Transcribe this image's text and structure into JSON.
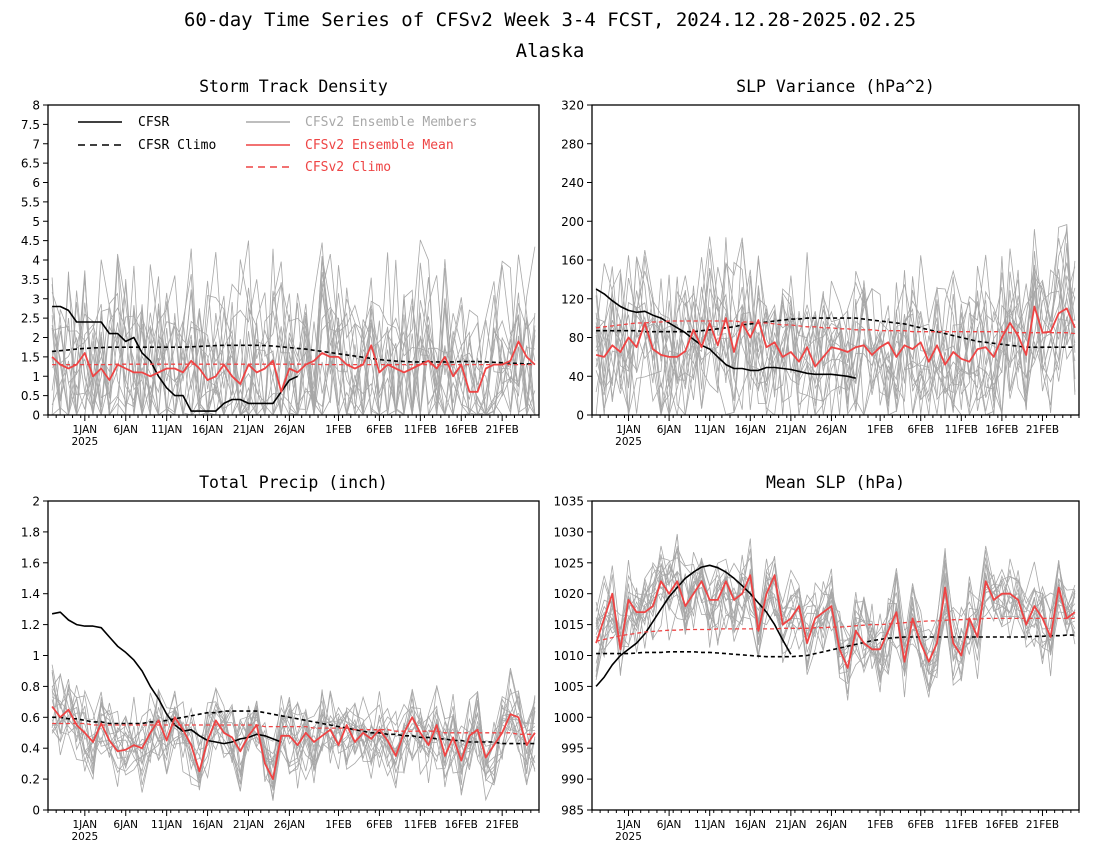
{
  "figure": {
    "title": "60-day Time Series of CFSv2 Week 3-4 FCST, 2024.12.28-2025.02.25",
    "subtitle": "Alaska"
  },
  "colors": {
    "cfsr": "#000000",
    "members": "#a8a8a8",
    "ensemble_mean": "#ee4444",
    "cfsv2_climo": "#ee4444",
    "legend_members_text": "#a8a8a8",
    "legend_red_text": "#ee4444"
  },
  "legend": {
    "cfsr": "CFSR",
    "cfsr_climo": "CFSR Climo",
    "members": "CFSv2 Ensemble Members",
    "ensemble_mean": "CFSv2 Ensemble Mean",
    "cfsv2_climo": "CFSv2 Climo"
  },
  "x_axis": {
    "days": 60,
    "ticks": [
      {
        "day": 4,
        "label": "1JAN",
        "sub": "2025"
      },
      {
        "day": 9,
        "label": "6JAN"
      },
      {
        "day": 14,
        "label": "11JAN"
      },
      {
        "day": 19,
        "label": "16JAN"
      },
      {
        "day": 24,
        "label": "21JAN"
      },
      {
        "day": 29,
        "label": "26JAN"
      },
      {
        "day": 35,
        "label": "1FEB"
      },
      {
        "day": 40,
        "label": "6FEB"
      },
      {
        "day": 45,
        "label": "11FEB"
      },
      {
        "day": 50,
        "label": "16FEB"
      },
      {
        "day": 55,
        "label": "21FEB"
      }
    ]
  },
  "chart_data": [
    {
      "type": "line",
      "title": "Storm Track Density",
      "ylim": [
        0,
        8
      ],
      "yticks": [
        "0",
        "0.5",
        "1",
        "1.5",
        "2",
        "2.5",
        "3",
        "3.5",
        "4",
        "4.5",
        "5",
        "5.5",
        "6",
        "6.5",
        "7",
        "7.5",
        "8"
      ],
      "legend_shown": true,
      "ensemble_members": 16,
      "series": [
        {
          "name": "CFSR",
          "style": "solid-black",
          "values": [
            2.8,
            2.8,
            2.7,
            2.4,
            2.4,
            2.4,
            2.4,
            2.1,
            2.1,
            1.9,
            2.0,
            1.6,
            1.4,
            1.0,
            0.7,
            0.5,
            0.5,
            0.1,
            0.1,
            0.1,
            0.1,
            0.3,
            0.4,
            0.4,
            0.3,
            0.3,
            0.3,
            0.3,
            0.6,
            0.9,
            1.0
          ]
        },
        {
          "name": "CFSR Climo",
          "style": "dashed-black",
          "values": [
            1.64,
            1.66,
            1.68,
            1.7,
            1.72,
            1.73,
            1.74,
            1.75,
            1.75,
            1.75,
            1.75,
            1.75,
            1.75,
            1.75,
            1.75,
            1.75,
            1.75,
            1.76,
            1.77,
            1.78,
            1.79,
            1.8,
            1.8,
            1.8,
            1.8,
            1.8,
            1.79,
            1.78,
            1.76,
            1.74,
            1.72,
            1.7,
            1.67,
            1.64,
            1.61,
            1.58,
            1.55,
            1.52,
            1.49,
            1.46,
            1.43,
            1.41,
            1.39,
            1.38,
            1.37,
            1.37,
            1.37,
            1.37,
            1.37,
            1.37,
            1.38,
            1.38,
            1.38,
            1.37,
            1.36,
            1.35,
            1.34,
            1.33,
            1.32,
            1.31
          ]
        },
        {
          "name": "CFSv2 Ensemble Mean",
          "style": "solid-red",
          "values": [
            1.5,
            1.3,
            1.2,
            1.3,
            1.6,
            1.0,
            1.2,
            0.9,
            1.3,
            1.2,
            1.1,
            1.1,
            1.0,
            1.1,
            1.2,
            1.2,
            1.1,
            1.4,
            1.2,
            0.9,
            1.0,
            1.3,
            1.0,
            0.8,
            1.3,
            1.1,
            1.2,
            1.4,
            0.6,
            1.2,
            1.1,
            1.3,
            1.4,
            1.6,
            1.5,
            1.5,
            1.3,
            1.2,
            1.3,
            1.8,
            1.1,
            1.3,
            1.2,
            1.1,
            1.2,
            1.3,
            1.4,
            1.2,
            1.5,
            1.0,
            1.3,
            0.6,
            0.6,
            1.2,
            1.3,
            1.3,
            1.4,
            1.9,
            1.5,
            1.3
          ]
        },
        {
          "name": "CFSv2 Climo",
          "style": "dashed-red",
          "values": [
            1.3,
            1.3,
            1.3,
            1.3,
            1.3,
            1.3,
            1.3,
            1.3,
            1.31,
            1.31,
            1.31,
            1.31,
            1.31,
            1.31,
            1.31,
            1.31,
            1.31,
            1.31,
            1.31,
            1.31,
            1.31,
            1.31,
            1.31,
            1.31,
            1.31,
            1.31,
            1.31,
            1.31,
            1.31,
            1.31,
            1.31,
            1.31,
            1.31,
            1.3,
            1.3,
            1.3,
            1.3,
            1.3,
            1.3,
            1.3,
            1.3,
            1.3,
            1.3,
            1.3,
            1.3,
            1.3,
            1.3,
            1.3,
            1.3,
            1.3,
            1.3,
            1.3,
            1.3,
            1.3,
            1.3,
            1.3,
            1.3,
            1.3,
            1.3,
            1.3
          ]
        }
      ]
    },
    {
      "type": "line",
      "title": "SLP Variance (hPa^2)",
      "ylim": [
        0,
        320
      ],
      "yticks": [
        "0",
        "40",
        "80",
        "120",
        "160",
        "200",
        "240",
        "280",
        "320"
      ],
      "legend_shown": false,
      "ensemble_members": 16,
      "series": [
        {
          "name": "CFSR",
          "style": "solid-black",
          "values": [
            130,
            125,
            118,
            112,
            108,
            106,
            107,
            103,
            100,
            95,
            90,
            85,
            78,
            72,
            68,
            60,
            52,
            48,
            48,
            46,
            46,
            49,
            49,
            48,
            47,
            45,
            43,
            42,
            42,
            42,
            41,
            40,
            38
          ]
        },
        {
          "name": "CFSR Climo",
          "style": "dashed-black",
          "values": [
            87,
            87,
            87,
            87,
            87,
            87,
            86,
            86,
            86,
            86,
            86,
            86,
            86,
            87,
            88,
            89,
            90,
            91,
            93,
            94,
            95,
            96,
            97,
            98,
            99,
            99,
            100,
            100,
            100,
            100,
            100,
            100,
            100,
            99,
            98,
            97,
            96,
            95,
            94,
            92,
            90,
            88,
            86,
            84,
            82,
            80,
            78,
            76,
            75,
            74,
            73,
            72,
            71,
            70,
            70,
            70,
            70,
            70,
            70,
            70
          ]
        },
        {
          "name": "CFSv2 Ensemble Mean",
          "style": "solid-red",
          "values": [
            62,
            60,
            72,
            65,
            80,
            70,
            95,
            68,
            62,
            60,
            60,
            66,
            88,
            70,
            95,
            72,
            100,
            65,
            95,
            80,
            98,
            70,
            75,
            60,
            65,
            55,
            70,
            50,
            60,
            70,
            68,
            65,
            70,
            72,
            62,
            70,
            75,
            60,
            72,
            68,
            75,
            55,
            72,
            52,
            65,
            58,
            55,
            68,
            70,
            60,
            80,
            95,
            82,
            62,
            112,
            85,
            86,
            105,
            110,
            90
          ]
        },
        {
          "name": "CFSv2 Climo",
          "style": "dashed-red",
          "values": [
            90,
            91,
            92,
            93,
            94,
            95,
            95,
            96,
            96,
            97,
            97,
            97,
            97,
            97,
            97,
            97,
            97,
            97,
            96,
            96,
            95,
            95,
            94,
            93,
            93,
            92,
            91,
            91,
            90,
            90,
            89,
            89,
            88,
            88,
            88,
            87,
            87,
            87,
            87,
            86,
            86,
            86,
            86,
            86,
            86,
            86,
            86,
            86,
            86,
            86,
            86,
            85,
            85,
            85,
            85,
            85,
            85,
            85,
            85,
            84
          ]
        }
      ]
    },
    {
      "type": "line",
      "title": "Total Precip (inch)",
      "ylim": [
        0,
        2
      ],
      "yticks": [
        "0",
        "0.2",
        "0.4",
        "0.6",
        "0.8",
        "1",
        "1.2",
        "1.4",
        "1.6",
        "1.8",
        "2"
      ],
      "legend_shown": false,
      "ensemble_members": 16,
      "series": [
        {
          "name": "CFSR",
          "style": "solid-black",
          "values": [
            1.27,
            1.28,
            1.23,
            1.2,
            1.19,
            1.19,
            1.18,
            1.12,
            1.06,
            1.02,
            0.97,
            0.9,
            0.8,
            0.72,
            0.62,
            0.55,
            0.51,
            0.52,
            0.48,
            0.45,
            0.44,
            0.43,
            0.44,
            0.46,
            0.47,
            0.49,
            0.48,
            0.46,
            0.44
          ]
        },
        {
          "name": "CFSR Climo",
          "style": "dashed-black",
          "values": [
            0.6,
            0.6,
            0.59,
            0.59,
            0.58,
            0.57,
            0.57,
            0.56,
            0.56,
            0.56,
            0.56,
            0.56,
            0.57,
            0.57,
            0.58,
            0.59,
            0.6,
            0.61,
            0.62,
            0.63,
            0.63,
            0.64,
            0.64,
            0.64,
            0.64,
            0.64,
            0.63,
            0.62,
            0.61,
            0.6,
            0.59,
            0.58,
            0.57,
            0.56,
            0.55,
            0.54,
            0.53,
            0.52,
            0.51,
            0.5,
            0.5,
            0.49,
            0.49,
            0.48,
            0.48,
            0.47,
            0.47,
            0.46,
            0.46,
            0.45,
            0.45,
            0.44,
            0.44,
            0.44,
            0.44,
            0.43,
            0.43,
            0.43,
            0.43,
            0.43
          ]
        },
        {
          "name": "CFSv2 Ensemble Mean",
          "style": "solid-red",
          "values": [
            0.67,
            0.6,
            0.65,
            0.55,
            0.5,
            0.44,
            0.56,
            0.45,
            0.38,
            0.39,
            0.42,
            0.4,
            0.5,
            0.58,
            0.45,
            0.6,
            0.52,
            0.42,
            0.25,
            0.45,
            0.58,
            0.5,
            0.47,
            0.38,
            0.48,
            0.55,
            0.3,
            0.2,
            0.48,
            0.48,
            0.42,
            0.5,
            0.44,
            0.48,
            0.52,
            0.42,
            0.55,
            0.44,
            0.5,
            0.46,
            0.52,
            0.45,
            0.35,
            0.5,
            0.6,
            0.5,
            0.42,
            0.55,
            0.35,
            0.47,
            0.32,
            0.48,
            0.52,
            0.34,
            0.42,
            0.5,
            0.62,
            0.6,
            0.42,
            0.5
          ]
        },
        {
          "name": "CFSv2 Climo",
          "style": "dashed-red",
          "values": [
            0.56,
            0.56,
            0.56,
            0.56,
            0.56,
            0.55,
            0.55,
            0.55,
            0.55,
            0.55,
            0.55,
            0.55,
            0.55,
            0.55,
            0.55,
            0.55,
            0.55,
            0.55,
            0.55,
            0.55,
            0.55,
            0.55,
            0.55,
            0.55,
            0.55,
            0.55,
            0.54,
            0.54,
            0.54,
            0.54,
            0.54,
            0.54,
            0.53,
            0.53,
            0.53,
            0.53,
            0.53,
            0.52,
            0.52,
            0.52,
            0.52,
            0.52,
            0.51,
            0.51,
            0.51,
            0.51,
            0.51,
            0.51,
            0.5,
            0.5,
            0.5,
            0.5,
            0.5,
            0.5,
            0.5,
            0.5,
            0.5,
            0.49,
            0.49,
            0.49
          ]
        }
      ]
    },
    {
      "type": "line",
      "title": "Mean SLP (hPa)",
      "ylim": [
        985,
        1035
      ],
      "yticks": [
        "985",
        "990",
        "995",
        "1000",
        "1005",
        "1010",
        "1015",
        "1020",
        "1025",
        "1030",
        "1035"
      ],
      "legend_shown": false,
      "ensemble_members": 16,
      "series": [
        {
          "name": "CFSR",
          "style": "solid-black",
          "values": [
            1005,
            1006.5,
            1008.5,
            1010,
            1011,
            1012,
            1013.5,
            1015.5,
            1017.5,
            1019.5,
            1021,
            1022.5,
            1023.5,
            1024.3,
            1024.6,
            1024.2,
            1023.5,
            1022.5,
            1021.3,
            1020,
            1018.5,
            1017,
            1015,
            1012.5,
            1010.2
          ]
        },
        {
          "name": "CFSR Climo",
          "style": "dashed-black",
          "values": [
            1010.3,
            1010.3,
            1010.3,
            1010.3,
            1010.3,
            1010.4,
            1010.5,
            1010.5,
            1010.5,
            1010.6,
            1010.6,
            1010.6,
            1010.6,
            1010.5,
            1010.5,
            1010.4,
            1010.3,
            1010.2,
            1010.1,
            1010.0,
            1009.9,
            1009.8,
            1009.8,
            1009.8,
            1009.8,
            1009.9,
            1010.0,
            1010.3,
            1010.6,
            1010.9,
            1011.2,
            1011.5,
            1011.8,
            1012.1,
            1012.4,
            1012.6,
            1012.8,
            1012.9,
            1013.0,
            1013.0,
            1013.0,
            1013.0,
            1013.0,
            1013.0,
            1013.0,
            1013.0,
            1013.0,
            1013.0,
            1013.0,
            1013.0,
            1013.0,
            1013.0,
            1013.0,
            1013.0,
            1013.1,
            1013.1,
            1013.2,
            1013.2,
            1013.3,
            1013.3
          ]
        },
        {
          "name": "CFSv2 Ensemble Mean",
          "style": "solid-red",
          "values": [
            1012,
            1016,
            1020,
            1011,
            1019,
            1017,
            1017,
            1018,
            1022,
            1020,
            1022,
            1018,
            1020,
            1022,
            1019,
            1019,
            1022,
            1019,
            1020,
            1023,
            1014,
            1020,
            1023,
            1015,
            1016,
            1018,
            1012,
            1016,
            1017,
            1018,
            1011,
            1008,
            1014,
            1012,
            1011,
            1011,
            1014,
            1017,
            1009,
            1016,
            1012,
            1009,
            1012,
            1021,
            1012,
            1010,
            1016,
            1013,
            1022,
            1019,
            1020,
            1020,
            1019,
            1015,
            1018,
            1016,
            1013,
            1021,
            1016,
            1017
          ]
        },
        {
          "name": "CFSv2 Climo",
          "style": "dashed-red",
          "values": [
            1012.3,
            1012.6,
            1012.9,
            1013.2,
            1013.4,
            1013.6,
            1013.8,
            1013.9,
            1014.0,
            1014.1,
            1014.1,
            1014.2,
            1014.2,
            1014.2,
            1014.2,
            1014.3,
            1014.3,
            1014.3,
            1014.3,
            1014.3,
            1014.3,
            1014.3,
            1014.3,
            1014.4,
            1014.4,
            1014.4,
            1014.4,
            1014.5,
            1014.5,
            1014.6,
            1014.6,
            1014.7,
            1014.8,
            1014.9,
            1015.0,
            1015.0,
            1015.1,
            1015.2,
            1015.3,
            1015.4,
            1015.5,
            1015.6,
            1015.6,
            1015.7,
            1015.8,
            1015.8,
            1015.9,
            1015.9,
            1016.0,
            1016.0,
            1016.0,
            1016.0,
            1016.0,
            1016.0,
            1016.0,
            1016.0,
            1016.0,
            1016.0,
            1016.0,
            1016.0
          ]
        }
      ]
    }
  ]
}
